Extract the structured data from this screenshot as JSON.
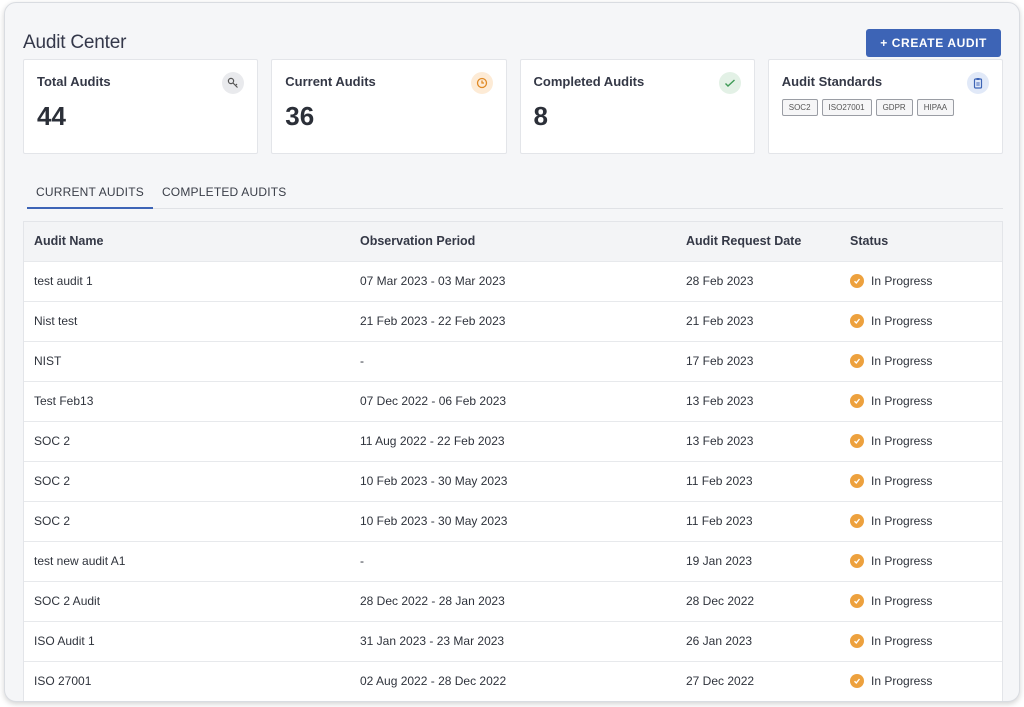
{
  "header": {
    "title": "Audit Center",
    "create_label": "+ CREATE AUDIT"
  },
  "cards": [
    {
      "title": "Total Audits",
      "value": "44",
      "icon": "key-icon"
    },
    {
      "title": "Current Audits",
      "value": "36",
      "icon": "clock-icon"
    },
    {
      "title": "Completed Audits",
      "value": "8",
      "icon": "check-icon"
    },
    {
      "title": "Audit Standards",
      "icon": "clipboard-icon",
      "tags": [
        "SOC2",
        "ISO27001",
        "GDPR",
        "HIPAA"
      ]
    }
  ],
  "tabs": [
    {
      "label": "CURRENT AUDITS",
      "active": true
    },
    {
      "label": "COMPLETED AUDITS",
      "active": false
    }
  ],
  "table": {
    "headers": [
      "Audit Name",
      "Observation Period",
      "Audit Request Date",
      "Status"
    ],
    "rows": [
      [
        "test audit 1",
        "07 Mar 2023 - 03 Mar 2023",
        "28 Feb 2023",
        "In Progress"
      ],
      [
        "Nist test",
        "21 Feb 2023 - 22 Feb 2023",
        "21 Feb 2023",
        "In Progress"
      ],
      [
        "NIST",
        "-",
        "17 Feb 2023",
        "In Progress"
      ],
      [
        "Test Feb13",
        "07 Dec 2022 - 06 Feb 2023",
        "13 Feb 2023",
        "In Progress"
      ],
      [
        "SOC 2",
        "11 Aug 2022 - 22 Feb 2023",
        "13 Feb 2023",
        "In Progress"
      ],
      [
        "SOC 2",
        "10 Feb 2023 - 30 May 2023",
        "11 Feb 2023",
        "In Progress"
      ],
      [
        "SOC 2",
        "10 Feb 2023 - 30 May 2023",
        "11 Feb 2023",
        "In Progress"
      ],
      [
        "test new audit A1",
        "-",
        "19 Jan 2023",
        "In Progress"
      ],
      [
        "SOC 2 Audit",
        "28 Dec 2022 - 28 Jan 2023",
        "28 Dec 2022",
        "In Progress"
      ],
      [
        "ISO Audit 1",
        "31 Jan 2023 - 23 Mar 2023",
        "26 Jan 2023",
        "In Progress"
      ],
      [
        "ISO 27001",
        "02 Aug 2022 - 28 Dec 2022",
        "27 Dec 2022",
        "In Progress"
      ]
    ]
  },
  "colors": {
    "accent": "#3d64b6",
    "status_in_progress": "#eda13e"
  }
}
